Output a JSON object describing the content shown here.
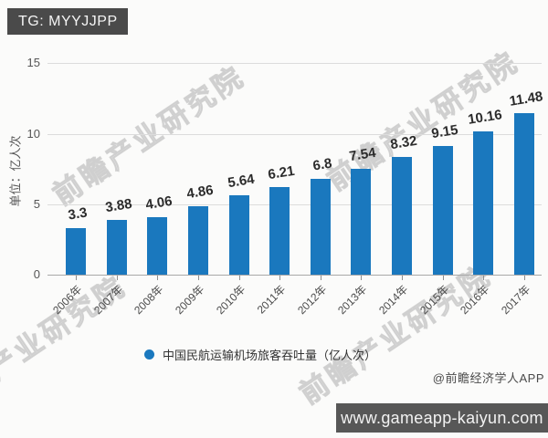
{
  "badge": {
    "label": "TG: MYYJJPP"
  },
  "watermark": {
    "text": "前瞻产业研究院"
  },
  "credit": {
    "label": "@前瞻经济学人APP"
  },
  "footer": {
    "url": "www.gameapp-kaiyun.com"
  },
  "colors": {
    "bar": "#1a78be",
    "badge_bg": "#4a4a4a",
    "footer_bg": "#575757",
    "grid": "#dcdcdc",
    "axis": "#a8a8a8",
    "label": "#2b2b2b"
  },
  "chart_data": {
    "type": "bar",
    "title": "",
    "categories": [
      "2006年",
      "2007年",
      "2008年",
      "2009年",
      "2010年",
      "2011年",
      "2012年",
      "2013年",
      "2014年",
      "2015年",
      "2016年",
      "2017年"
    ],
    "values": [
      3.3,
      3.88,
      4.06,
      4.86,
      5.64,
      6.21,
      6.8,
      7.54,
      8.32,
      9.15,
      10.16,
      11.48
    ],
    "xlabel": "",
    "ylabel": "单位：亿人次",
    "yticks": [
      0,
      5,
      10,
      15
    ],
    "ylim": [
      0,
      15.5
    ],
    "grid": true,
    "legend": {
      "label": "中国民航运输机场旅客吞吐量（亿人次）",
      "position": "bottom-center",
      "marker": "circle"
    }
  }
}
